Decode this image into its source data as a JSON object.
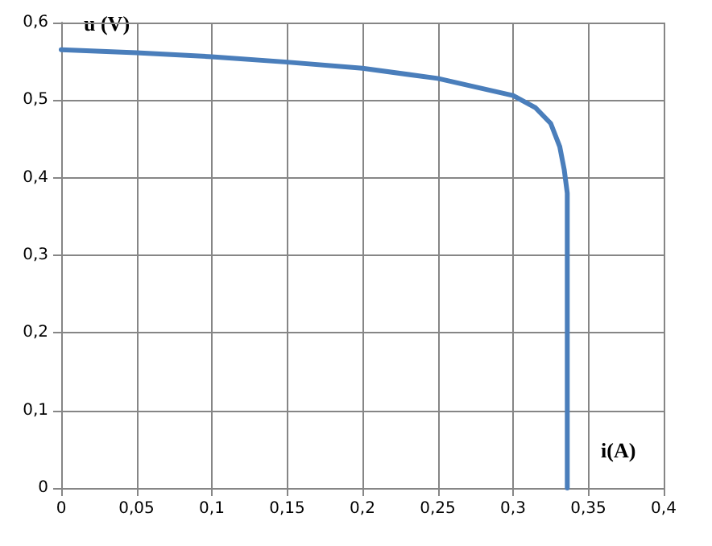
{
  "chart_data": {
    "type": "line",
    "xlabel": "i(A)",
    "ylabel": "u (V)",
    "x": [
      0,
      0.05,
      0.1,
      0.15,
      0.2,
      0.25,
      0.3,
      0.315,
      0.325,
      0.331,
      0.334,
      0.336,
      0.336,
      0.336
    ],
    "series": [
      {
        "color": "#4a7ebb",
        "values": [
          0.565,
          0.561,
          0.556,
          0.549,
          0.541,
          0.528,
          0.506,
          0.49,
          0.47,
          0.44,
          0.41,
          0.38,
          0.2,
          0
        ]
      }
    ],
    "xlim": [
      0,
      0.4
    ],
    "xticks": [
      0,
      {
        "value": 0.05,
        "label": "0,05"
      },
      {
        "value": 0.1,
        "label": "0,1"
      },
      {
        "value": 0.15,
        "label": "0,15"
      },
      {
        "value": 0.2,
        "label": "0,2"
      },
      {
        "value": 0.25,
        "label": "0,25"
      },
      {
        "value": 0.3,
        "label": "0,3"
      },
      {
        "value": 0.35,
        "label": "0,35"
      },
      {
        "value": 0.4,
        "label": "0,4"
      }
    ],
    "ylim": [
      0,
      0.6
    ],
    "yticks": [
      0,
      {
        "value": 0.1,
        "label": "0,1"
      },
      {
        "value": 0.2,
        "label": "0,2"
      },
      {
        "value": 0.3,
        "label": "0,3"
      },
      {
        "value": 0.4,
        "label": "0,4"
      },
      {
        "value": 0.5,
        "label": "0,5"
      },
      {
        "value": 0.6,
        "label": "0,6"
      }
    ],
    "grid": true,
    "marker": "none",
    "line_style": "solid"
  }
}
